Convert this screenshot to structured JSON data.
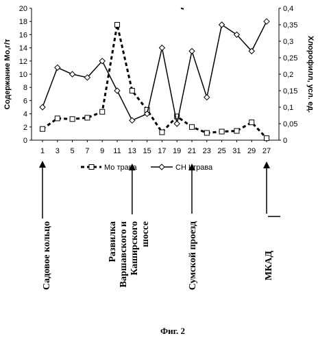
{
  "chart_data": {
    "type": "line",
    "x": [
      "1",
      "3",
      "5",
      "7",
      "9",
      "11",
      "13",
      "15",
      "17",
      "19",
      "21",
      "23",
      "25",
      "31",
      "29",
      "27"
    ],
    "series": [
      {
        "name": "Мо трава",
        "axis": "left",
        "style": "dashed",
        "marker": "square",
        "values": [
          1.7,
          3.3,
          3.2,
          3.4,
          4.3,
          17.5,
          7.5,
          4.6,
          1.2,
          3.6,
          2.0,
          1.1,
          1.3,
          1.4,
          2.7,
          0.3
        ]
      },
      {
        "name": "СН Lтрава",
        "axis": "right",
        "style": "solid",
        "marker": "diamond",
        "values": [
          0.1,
          0.22,
          0.2,
          0.19,
          0.24,
          0.15,
          0.06,
          0.08,
          0.28,
          0.05,
          0.27,
          0.13,
          0.35,
          0.32,
          0.27,
          0.36
        ]
      }
    ],
    "y_left": {
      "label": "Содержание Мо,г/т",
      "min": 0,
      "max": 20,
      "ticks": [
        "0",
        "2",
        "4",
        "6",
        "8",
        "10",
        "12",
        "14",
        "16",
        "18",
        "20"
      ]
    },
    "y_right": {
      "label": "Хлорофилл, усл. ед.",
      "min": 0,
      "max": 0.4,
      "ticks": [
        "0",
        "0,05",
        "0,1",
        "0,15",
        "0,2",
        "0,25",
        "0,3",
        "0,35",
        "0,4"
      ]
    },
    "legend": {
      "placement": "bottom",
      "entries": [
        "Мо трава",
        "СН Lтрава"
      ]
    },
    "grid": false
  },
  "annotations": [
    {
      "text": "Садовое кольцо",
      "x_index": 0
    },
    {
      "lines": [
        "Развилка",
        "Варшавского и",
        "Каширского",
        "шоссе"
      ],
      "x_index": 6
    },
    {
      "text": "Сумской проезд",
      "x_index": 10
    },
    {
      "text": "МКАД",
      "x_index": 15
    }
  ],
  "caption": "Фиг. 2"
}
